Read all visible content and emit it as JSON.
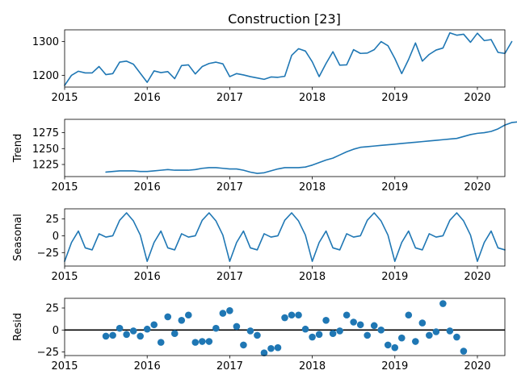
{
  "title": "Construction  [23]",
  "colors": {
    "series": "#1f77b4",
    "axis": "#000000",
    "zero_line": "#000000"
  },
  "chart_data": [
    {
      "panel": "observed",
      "type": "line",
      "ylabel": "",
      "xlim": [
        2015.0,
        2020.333
      ],
      "ylim": [
        1165,
        1335
      ],
      "x_ticks": [
        2015,
        2016,
        2017,
        2018,
        2019,
        2020
      ],
      "x_tick_labels": [
        "2015",
        "2016",
        "2017",
        "2018",
        "2019",
        "2020"
      ],
      "y_ticks": [
        1200,
        1300
      ],
      "y_tick_labels": [
        "1200",
        "1300"
      ],
      "x_start": 2015.0,
      "x_step": 0.08333,
      "values": [
        1170,
        1200,
        1212,
        1207,
        1207,
        1226,
        1202,
        1205,
        1239,
        1242,
        1233,
        1206,
        1179,
        1213,
        1208,
        1211,
        1190,
        1229,
        1231,
        1204,
        1226,
        1235,
        1239,
        1234,
        1196,
        1205,
        1201,
        1196,
        1192,
        1188,
        1195,
        1194,
        1197,
        1259,
        1279,
        1272,
        1240,
        1196,
        1235,
        1270,
        1230,
        1231,
        1276,
        1265,
        1266,
        1276,
        1300,
        1288,
        1250,
        1205,
        1247,
        1296,
        1242,
        1262,
        1275,
        1281,
        1326,
        1319,
        1322,
        1298,
        1325,
        1303,
        1306,
        1268,
        1265,
        1300
      ]
    },
    {
      "panel": "trend",
      "type": "line",
      "ylabel": "Trend",
      "xlim": [
        2015.0,
        2020.333
      ],
      "ylim": [
        1206,
        1296
      ],
      "x_ticks": [
        2015,
        2016,
        2017,
        2018,
        2019,
        2020
      ],
      "x_tick_labels": [
        "2015",
        "2016",
        "2017",
        "2018",
        "2019",
        "2020"
      ],
      "y_ticks": [
        1225,
        1250,
        1275
      ],
      "y_tick_labels": [
        "1225",
        "1250",
        "1275"
      ],
      "x_start": 2015.5,
      "x_step": 0.08333,
      "values": [
        1213,
        1214,
        1215,
        1215,
        1215,
        1214,
        1214,
        1215,
        1216,
        1217,
        1216,
        1216,
        1216,
        1217,
        1219,
        1220,
        1220,
        1219,
        1218,
        1218,
        1216,
        1213,
        1211,
        1212,
        1215,
        1218,
        1220,
        1220,
        1220,
        1221,
        1224,
        1228,
        1232,
        1235,
        1240,
        1245,
        1249,
        1252,
        1253,
        1254,
        1255,
        1256,
        1257,
        1258,
        1259,
        1260,
        1261,
        1262,
        1263,
        1264,
        1265,
        1266,
        1269,
        1272,
        1274,
        1275,
        1277,
        1281,
        1287,
        1291,
        1292,
        1292,
        1294
      ]
    },
    {
      "panel": "seasonal",
      "type": "line",
      "ylabel": "Seasonal",
      "xlim": [
        2015.0,
        2020.333
      ],
      "ylim": [
        -45,
        40
      ],
      "x_ticks": [
        2015,
        2016,
        2017,
        2018,
        2019,
        2020
      ],
      "x_tick_labels": [
        "2015",
        "2016",
        "2017",
        "2018",
        "2019",
        "2020"
      ],
      "y_ticks": [
        -25,
        0,
        25
      ],
      "y_tick_labels": [
        "−25",
        "0",
        "25"
      ],
      "x_start": 2015.0,
      "x_step": 0.08333,
      "values": [
        -38,
        -10,
        7,
        -18,
        -21,
        3,
        -2,
        0,
        23,
        34,
        22,
        1,
        -38,
        -10,
        7,
        -18,
        -21,
        3,
        -2,
        0,
        23,
        34,
        22,
        1,
        -38,
        -10,
        7,
        -18,
        -21,
        3,
        -2,
        0,
        23,
        34,
        22,
        1,
        -38,
        -10,
        7,
        -18,
        -21,
        3,
        -2,
        0,
        23,
        34,
        22,
        1,
        -38,
        -10,
        7,
        -18,
        -21,
        3,
        -2,
        0,
        23,
        34,
        22,
        1,
        -38,
        -10,
        7,
        -18,
        -21
      ]
    },
    {
      "panel": "resid",
      "type": "scatter",
      "ylabel": "Resid",
      "xlim": [
        2015.0,
        2020.333
      ],
      "ylim": [
        -29,
        36
      ],
      "x_ticks": [
        2015,
        2016,
        2017,
        2018,
        2019,
        2020
      ],
      "x_tick_labels": [
        "2015",
        "2016",
        "2017",
        "2018",
        "2019",
        "2020"
      ],
      "y_ticks": [
        -25,
        0,
        25
      ],
      "y_tick_labels": [
        "−25",
        "0",
        "25"
      ],
      "zero_line": true,
      "x_start": 2015.5,
      "x_step": 0.08333,
      "values": [
        -7,
        -6,
        2,
        -5,
        -1,
        -7,
        1,
        6,
        -14,
        15,
        -4,
        11,
        17,
        -14,
        -13,
        -13,
        2,
        19,
        22,
        4,
        -17,
        -1,
        -6,
        -26,
        -21,
        -20,
        14,
        17,
        17,
        1,
        -8,
        -5,
        11,
        -4,
        -1,
        17,
        9,
        6,
        -6,
        5,
        0,
        -17,
        -20,
        -9,
        17,
        -13,
        8,
        -6,
        -2,
        30,
        -1,
        -8,
        -24
      ]
    }
  ]
}
